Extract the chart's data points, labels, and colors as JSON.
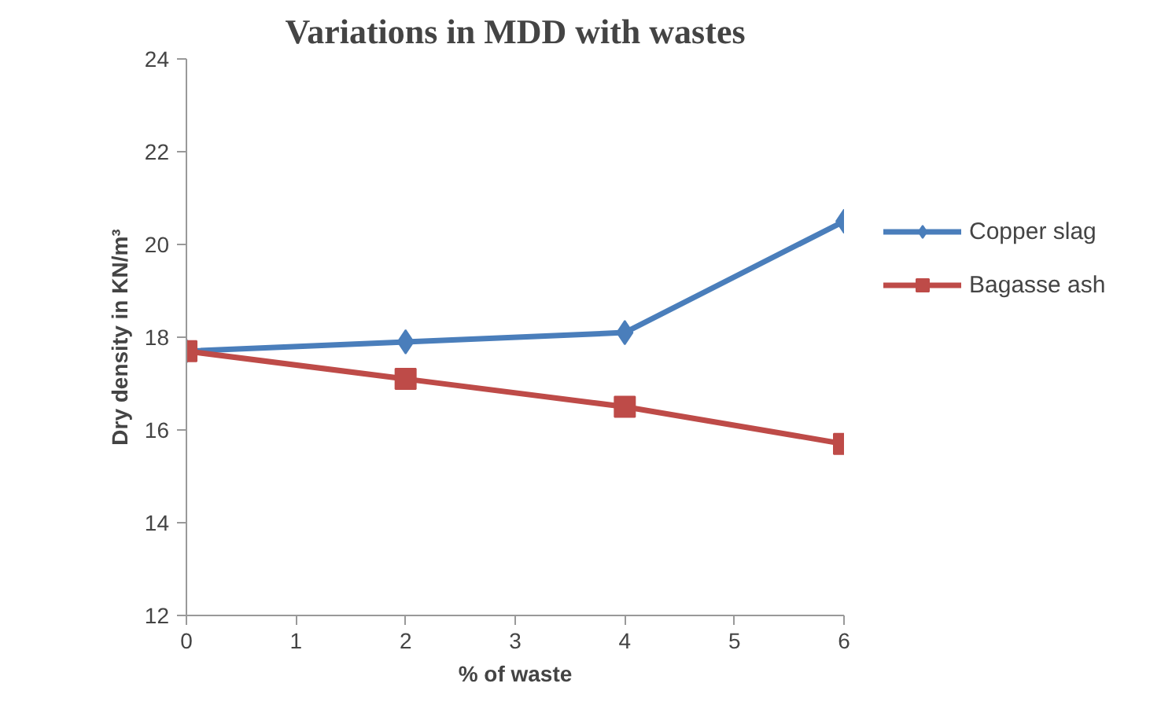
{
  "chart_data": {
    "type": "line",
    "title": "Variations in MDD with wastes",
    "xlabel": "% of waste",
    "ylabel": "Dry density in KN/m³",
    "x": [
      0,
      2,
      4,
      6
    ],
    "series": [
      {
        "name": "Copper slag",
        "color": "#4a7ebb",
        "values": [
          17.7,
          17.9,
          18.1,
          20.5
        ],
        "marker": "diamond"
      },
      {
        "name": "Bagasse ash",
        "color": "#be4b48",
        "values": [
          17.7,
          17.1,
          16.5,
          15.7
        ],
        "marker": "square"
      }
    ],
    "xlim": [
      0,
      6
    ],
    "xticks": [
      0,
      1,
      2,
      3,
      4,
      5,
      6
    ],
    "ylim": [
      12,
      24
    ],
    "yticks": [
      12,
      14,
      16,
      18,
      20,
      22,
      24
    ],
    "grid": false,
    "legend": "right",
    "line_style": "solid"
  }
}
